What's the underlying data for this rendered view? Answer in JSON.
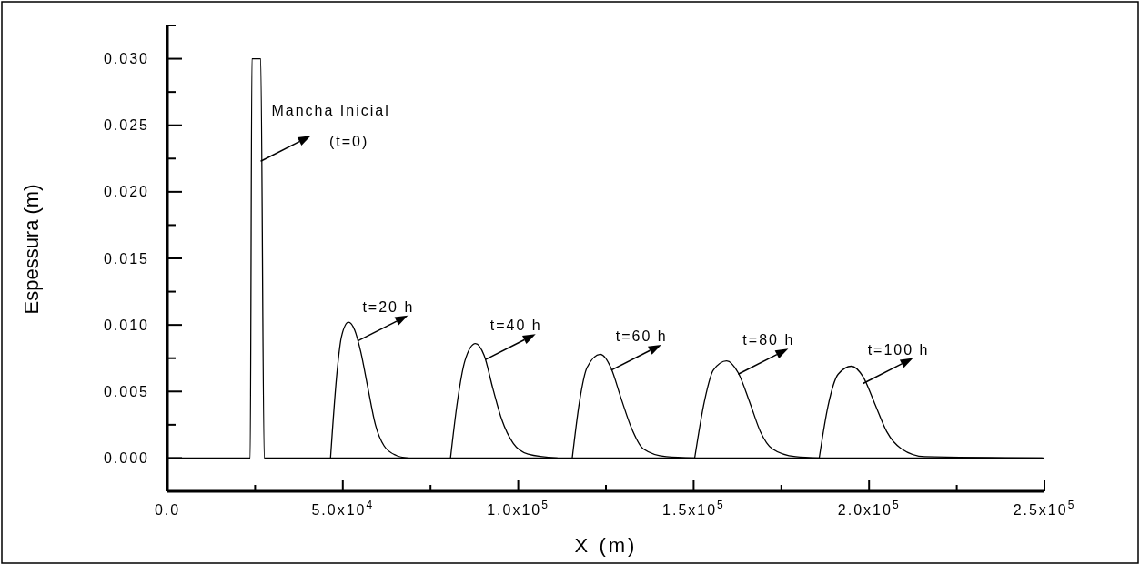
{
  "chart_data": {
    "type": "line",
    "xlabel": "X (m)",
    "ylabel": "Espessura (m)",
    "xlim": [
      0,
      250000
    ],
    "ylim": [
      -0.0025,
      0.0325
    ],
    "xticks": [
      {
        "value": 0,
        "label": "0.0"
      },
      {
        "value": 25000,
        "label": null
      },
      {
        "value": 50000,
        "label": "5.0x10$^{4}$"
      },
      {
        "value": 75000,
        "label": null
      },
      {
        "value": 100000,
        "label": "1.0x10$^{5}$"
      },
      {
        "value": 125000,
        "label": null
      },
      {
        "value": 150000,
        "label": "1.5x10$^{5}$"
      },
      {
        "value": 175000,
        "label": null
      },
      {
        "value": 200000,
        "label": "2.0x10$^{5}$"
      },
      {
        "value": 225000,
        "label": null
      },
      {
        "value": 250000,
        "label": "2.5x10$^{5}$"
      }
    ],
    "yticks": [
      {
        "value": -0.0025,
        "label": null
      },
      {
        "value": 0,
        "label": "0.000"
      },
      {
        "value": 0.0025,
        "label": null
      },
      {
        "value": 0.005,
        "label": "0.005"
      },
      {
        "value": 0.0075,
        "label": null
      },
      {
        "value": 0.01,
        "label": "0.010"
      },
      {
        "value": 0.0125,
        "label": null
      },
      {
        "value": 0.015,
        "label": "0.015"
      },
      {
        "value": 0.0175,
        "label": null
      },
      {
        "value": 0.02,
        "label": "0.020"
      },
      {
        "value": 0.0225,
        "label": null
      },
      {
        "value": 0.025,
        "label": "0.025"
      },
      {
        "value": 0.0275,
        "label": null
      },
      {
        "value": 0.03,
        "label": "0.030"
      },
      {
        "value": 0.0325,
        "label": null
      }
    ],
    "series": [
      {
        "color": "#000000",
        "x": [
          0,
          23600,
          24100,
          26600,
          27600,
          250000
        ],
        "values": [
          0,
          0,
          0.03,
          0.03,
          0,
          0
        ]
      },
      {
        "color": "#000000",
        "x": [
          46500,
          48400,
          49600,
          51600,
          53400,
          55100,
          57200,
          59300,
          61800,
          65200,
          68500
        ],
        "values": [
          0,
          0.0066,
          0.0091,
          0.0102,
          0.0096,
          0.008,
          0.0052,
          0.0025,
          0.0009,
          0.0002,
          0
        ]
      },
      {
        "color": "#000000",
        "x": [
          80700,
          82700,
          84800,
          87800,
          90300,
          92800,
          95300,
          98600,
          102800,
          111200
        ],
        "values": [
          0,
          0.0043,
          0.0073,
          0.0086,
          0.0077,
          0.0052,
          0.0029,
          0.0011,
          0.0003,
          0
        ]
      },
      {
        "color": "#000000",
        "x": [
          115400,
          117500,
          119600,
          123400,
          126400,
          129300,
          132200,
          135600,
          142200,
          150200
        ],
        "values": [
          0,
          0.0043,
          0.0068,
          0.0078,
          0.0068,
          0.0045,
          0.0023,
          0.0007,
          0.0001,
          0
        ]
      },
      {
        "color": "#000000",
        "x": [
          150300,
          153100,
          155600,
          159400,
          162700,
          166100,
          169000,
          172400,
          179100,
          185800
        ],
        "values": [
          0,
          0.0043,
          0.0066,
          0.0073,
          0.0064,
          0.0041,
          0.002,
          0.0007,
          0.0001,
          0
        ]
      },
      {
        "color": "#000000",
        "x": [
          185800,
          188300,
          191200,
          195000,
          198300,
          201600,
          205000,
          209200,
          215900,
          249400
        ],
        "values": [
          0,
          0.0039,
          0.0063,
          0.0069,
          0.0061,
          0.0041,
          0.002,
          0.0007,
          0.0001,
          0
        ]
      }
    ],
    "annotations": [
      {
        "text": "Mancha Inicial\n(t=0)",
        "x": 26600,
        "y": 0.0223
      },
      {
        "text": "t=20 h",
        "x": 54300,
        "y": 0.0088
      },
      {
        "text": "t=40 h",
        "x": 90700,
        "y": 0.0074
      },
      {
        "text": "t=60 h",
        "x": 126500,
        "y": 0.0066
      },
      {
        "text": "t=80 h",
        "x": 162700,
        "y": 0.0063
      },
      {
        "text": "t=100 h",
        "x": 198300,
        "y": 0.0056
      }
    ]
  }
}
